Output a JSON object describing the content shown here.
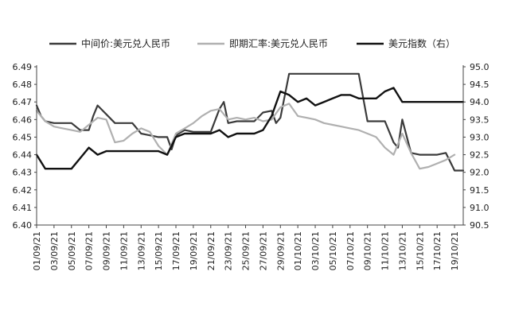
{
  "colors": {
    "mid_price": "#3b3b3b",
    "spot_rate": "#b0b0b0",
    "dxy": "#111111",
    "axis": "#444444"
  },
  "chart_data": {
    "type": "line",
    "title": "",
    "xlabel": "",
    "ylabel_left": "",
    "ylabel_right": "",
    "legend_position": "top",
    "grid": false,
    "y_left": {
      "min": 6.4,
      "max": 6.49,
      "ticks": [
        "6.40",
        "6.41",
        "6.42",
        "6.43",
        "6.44",
        "6.45",
        "6.46",
        "6.47",
        "6.48",
        "6.49"
      ]
    },
    "y_right": {
      "min": 90.5,
      "max": 95.0,
      "ticks": [
        "90.5",
        "91.0",
        "91.5",
        "92.0",
        "92.5",
        "93.0",
        "93.5",
        "94.0",
        "94.5",
        "95.0"
      ]
    },
    "x_ticks": [
      "01/09/21",
      "03/09/21",
      "05/09/21",
      "07/09/21",
      "09/09/21",
      "11/09/21",
      "13/09/21",
      "15/09/21",
      "17/09/21",
      "19/09/21",
      "21/09/21",
      "23/09/21",
      "25/09/21",
      "27/09/21",
      "29/09/21",
      "01/10/21",
      "03/10/21",
      "05/10/21",
      "07/10/21",
      "09/10/21",
      "11/10/21",
      "13/10/21",
      "15/10/21",
      "17/10/21",
      "19/10/21"
    ],
    "series": [
      {
        "name": "中间价:美元兑人民币",
        "axis": "left",
        "x": [
          0,
          0.5,
          1,
          2,
          3,
          4,
          5,
          6,
          6.5,
          7,
          8,
          9,
          10,
          11,
          12,
          13,
          14,
          15,
          15.5,
          16,
          17,
          18,
          19,
          20,
          21,
          21.5,
          22,
          23,
          24,
          24.5,
          25,
          26,
          27,
          27.5,
          28,
          29,
          29.5,
          30,
          31,
          32,
          33,
          34,
          35,
          36,
          37,
          38,
          39,
          40,
          41,
          41.5,
          42,
          43,
          44,
          45,
          46,
          47,
          48,
          49
        ],
        "values": [
          6.468,
          6.462,
          6.459,
          6.458,
          6.458,
          6.458,
          6.454,
          6.454,
          6.462,
          6.468,
          6.463,
          6.458,
          6.458,
          6.458,
          6.452,
          6.451,
          6.45,
          6.45,
          6.443,
          6.451,
          6.454,
          6.453,
          6.453,
          6.453,
          6.466,
          6.47,
          6.458,
          6.459,
          6.459,
          6.459,
          6.459,
          6.464,
          6.465,
          6.458,
          6.461,
          6.486,
          6.486,
          6.486,
          6.486,
          6.486,
          6.486,
          6.486,
          6.486,
          6.486,
          6.486,
          6.459,
          6.459,
          6.459,
          6.447,
          6.444,
          6.46,
          6.441,
          6.44,
          6.44,
          6.44,
          6.441,
          6.431,
          6.431
        ]
      },
      {
        "name": "即期汇率:美元兑人民币",
        "axis": "left",
        "x": [
          0,
          1,
          2,
          3,
          4,
          5,
          6,
          7,
          8,
          9,
          10,
          11,
          12,
          13,
          14,
          15,
          16,
          17,
          18,
          19,
          20,
          21,
          22,
          23,
          24,
          25,
          26,
          27,
          28,
          29,
          30,
          31,
          32,
          33,
          34,
          35,
          36,
          37,
          38,
          39,
          40,
          41,
          42,
          43,
          44,
          45,
          46,
          47,
          48
        ],
        "values": [
          6.465,
          6.459,
          6.456,
          6.455,
          6.454,
          6.453,
          6.457,
          6.461,
          6.46,
          6.447,
          6.448,
          6.452,
          6.455,
          6.453,
          6.445,
          6.44,
          6.452,
          6.455,
          6.458,
          6.462,
          6.465,
          6.466,
          6.46,
          6.461,
          6.46,
          6.461,
          6.459,
          6.46,
          6.467,
          6.469,
          6.462,
          6.461,
          6.46,
          6.458,
          6.457,
          6.456,
          6.455,
          6.454,
          6.452,
          6.45,
          6.444,
          6.44,
          6.452,
          6.441,
          6.432,
          6.433,
          6.435,
          6.437,
          6.44
        ]
      },
      {
        "name": "美元指数（右）",
        "axis": "right",
        "x": [
          0,
          1,
          2,
          3,
          4,
          5,
          6,
          7,
          8,
          9,
          10,
          11,
          12,
          13,
          14,
          15,
          16,
          17,
          18,
          19,
          20,
          21,
          22,
          23,
          24,
          25,
          26,
          27,
          28,
          29,
          30,
          31,
          32,
          33,
          34,
          35,
          36,
          37,
          38,
          39,
          40,
          41,
          42,
          43,
          44,
          45,
          46,
          47,
          48,
          49
        ],
        "values": [
          92.5,
          92.1,
          92.1,
          92.1,
          92.1,
          92.4,
          92.7,
          92.5,
          92.6,
          92.6,
          92.6,
          92.6,
          92.6,
          92.6,
          92.6,
          92.5,
          93.0,
          93.1,
          93.1,
          93.1,
          93.1,
          93.2,
          93.0,
          93.1,
          93.1,
          93.1,
          93.2,
          93.6,
          94.3,
          94.2,
          94.0,
          94.1,
          93.9,
          94.0,
          94.1,
          94.2,
          94.2,
          94.1,
          94.1,
          94.1,
          94.3,
          94.4,
          94.0,
          94.0,
          94.0,
          94.0,
          94.0,
          94.0,
          94.0,
          94.0
        ]
      }
    ]
  }
}
